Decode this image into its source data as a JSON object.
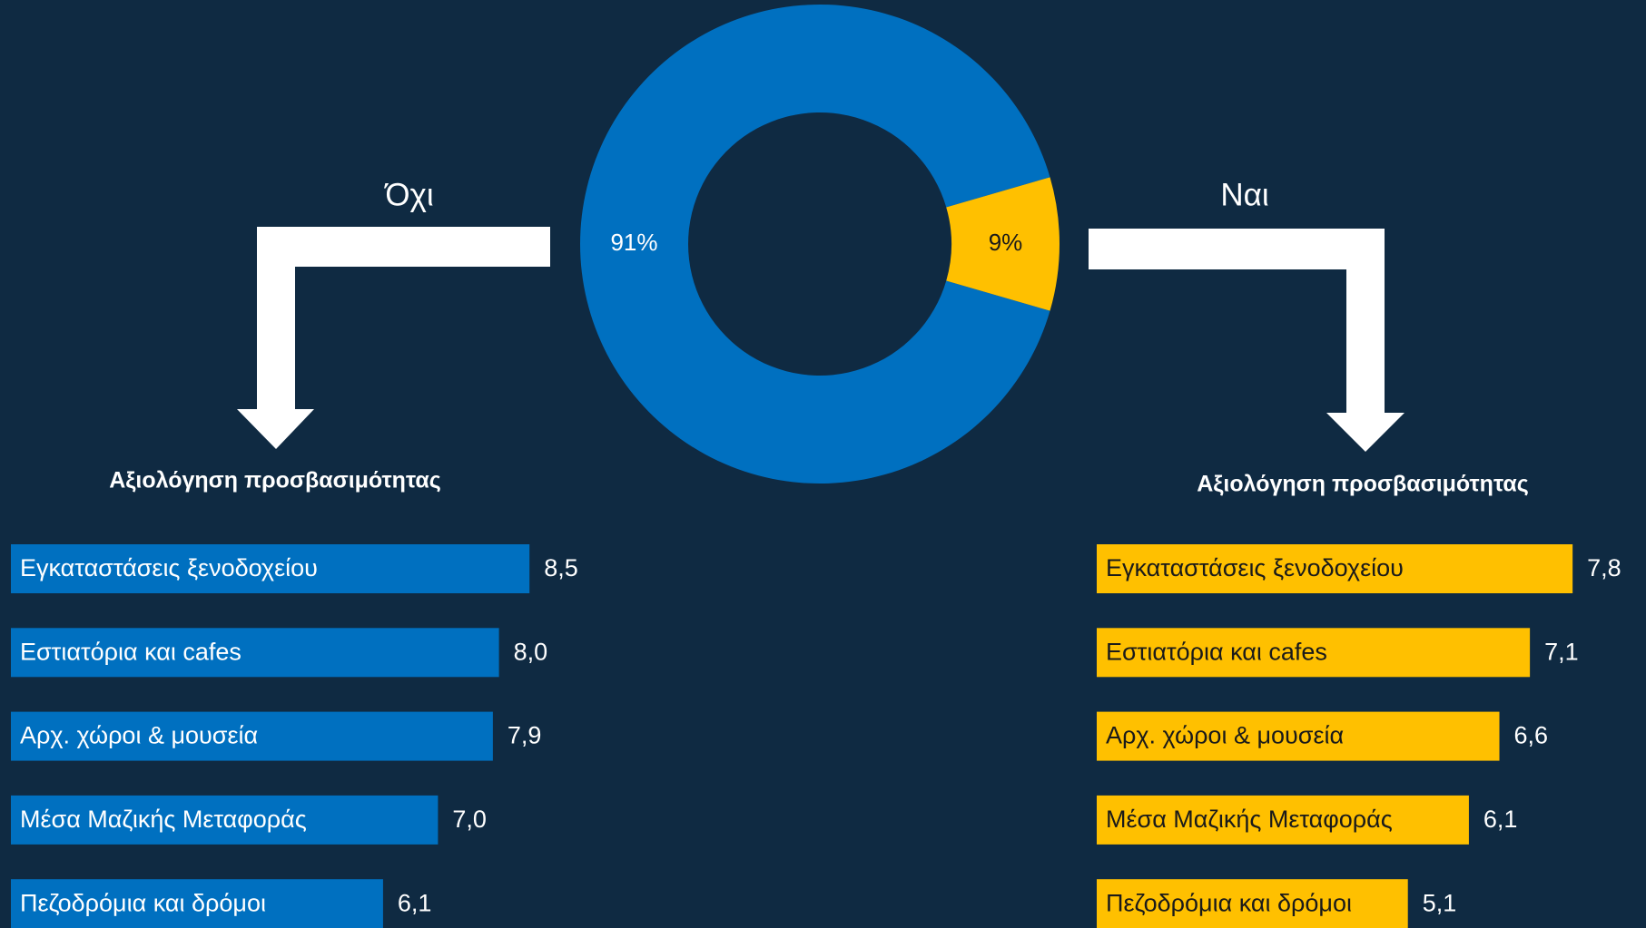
{
  "chart_data": [
    {
      "type": "pie",
      "donut": true,
      "categories": [
        "Όχι",
        "Ναι"
      ],
      "values": [
        91,
        9
      ],
      "value_labels": [
        "91%",
        "9%"
      ],
      "colors": [
        "#0070c0",
        "#ffc000"
      ]
    },
    {
      "type": "bar",
      "orientation": "horizontal",
      "title": "Αξιολόγηση προσβασιμότητας",
      "categories": [
        "Εγκαταστάσεις ξενοδοχείου",
        "Εστιατόρια και cafes",
        "Αρχ. χώροι & μουσεία",
        "Μέσα Μαζικής Μεταφοράς",
        "Πεζοδρόμια και δρόμοι"
      ],
      "values": [
        8.5,
        8.0,
        7.9,
        7.0,
        6.1
      ],
      "value_labels": [
        "8,5",
        "8,0",
        "7,9",
        "7,0",
        "6,1"
      ],
      "color": "#0070c0"
    },
    {
      "type": "bar",
      "orientation": "horizontal",
      "title": "Αξιολόγηση προσβασιμότητας",
      "categories": [
        "Εγκαταστάσεις ξενοδοχείου",
        "Εστιατόρια και cafes",
        "Αρχ. χώροι & μουσεία",
        "Μέσα Μαζικής Μεταφοράς",
        "Πεζοδρόμια και δρόμοι"
      ],
      "values": [
        7.8,
        7.1,
        6.6,
        6.1,
        5.1
      ],
      "value_labels": [
        "7,8",
        "7,1",
        "6,6",
        "6,1",
        "5,1"
      ],
      "color": "#ffc000"
    }
  ]
}
